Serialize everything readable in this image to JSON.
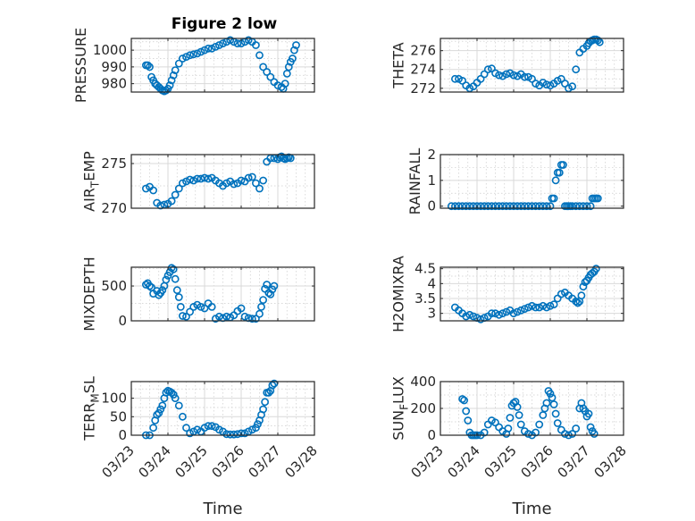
{
  "figure_title": "Figure 2 low",
  "marker_color": "#0072BD",
  "chart_data": [
    {
      "type": "scatter",
      "ylabel": "PRESSURE",
      "xlim": [
        0,
        5
      ],
      "ylim": [
        975,
        1007
      ],
      "yticks": [
        980,
        990,
        1000
      ],
      "xticks": [],
      "x": [
        0.4,
        0.45,
        0.5,
        0.55,
        0.6,
        0.65,
        0.7,
        0.75,
        0.8,
        0.85,
        0.9,
        0.95,
        1.0,
        1.05,
        1.1,
        1.15,
        1.2,
        1.3,
        1.4,
        1.5,
        1.6,
        1.7,
        1.8,
        1.9,
        2.0,
        2.1,
        2.2,
        2.3,
        2.4,
        2.5,
        2.6,
        2.7,
        2.8,
        2.9,
        3.0,
        3.1,
        3.2,
        3.3,
        3.4,
        3.5,
        3.6,
        3.7,
        3.8,
        3.9,
        4.0,
        4.1,
        4.15,
        4.2,
        4.25,
        4.3,
        4.35,
        4.4,
        4.45,
        4.5
      ],
      "y": [
        991,
        991,
        990,
        984,
        982,
        980,
        979,
        978,
        977,
        976,
        975.5,
        976,
        977,
        979,
        982,
        985,
        988,
        992,
        995,
        996,
        997,
        997.5,
        998,
        999,
        1000,
        1001,
        1001,
        1002,
        1003,
        1004,
        1005,
        1006,
        1005,
        1004,
        1004,
        1005,
        1006,
        1005,
        1003,
        997,
        990,
        987,
        984,
        981,
        979,
        978,
        977,
        980,
        986,
        990,
        993,
        995,
        1000,
        1003
      ]
    },
    {
      "type": "scatter",
      "ylabel": "THETA",
      "xlim": [
        0,
        5
      ],
      "ylim": [
        271.6,
        277.3
      ],
      "yticks": [
        272,
        274,
        276
      ],
      "xticks": [],
      "x": [
        0.4,
        0.5,
        0.6,
        0.7,
        0.8,
        0.9,
        1.0,
        1.1,
        1.2,
        1.3,
        1.4,
        1.5,
        1.6,
        1.7,
        1.8,
        1.9,
        2.0,
        2.1,
        2.2,
        2.3,
        2.4,
        2.5,
        2.6,
        2.7,
        2.8,
        2.9,
        3.0,
        3.1,
        3.2,
        3.3,
        3.4,
        3.5,
        3.6,
        3.7,
        3.8,
        3.9,
        4.0,
        4.05,
        4.1,
        4.15,
        4.2,
        4.25,
        4.3,
        4.35
      ],
      "y": [
        273,
        273,
        272.8,
        272.3,
        272,
        272.2,
        272.6,
        273,
        273.5,
        274,
        274.1,
        273.6,
        273.4,
        273.3,
        273.5,
        273.6,
        273.4,
        273.3,
        273.5,
        273.2,
        273.2,
        273,
        272.5,
        272.3,
        272.6,
        272.4,
        272.3,
        272.5,
        272.8,
        273,
        272.5,
        272,
        272.2,
        274,
        275.8,
        276.2,
        276.5,
        276.8,
        277,
        277.1,
        277.2,
        277.2,
        277.1,
        276.9
      ]
    },
    {
      "type": "scatter",
      "ylabel": "AIR_TEMP",
      "xlim": [
        0,
        5
      ],
      "ylim": [
        270,
        276
      ],
      "yticks": [
        270,
        275
      ],
      "xticks": [],
      "x": [
        0.4,
        0.5,
        0.6,
        0.7,
        0.8,
        0.9,
        1.0,
        1.1,
        1.2,
        1.3,
        1.4,
        1.5,
        1.6,
        1.7,
        1.8,
        1.9,
        2.0,
        2.1,
        2.2,
        2.3,
        2.4,
        2.5,
        2.6,
        2.7,
        2.8,
        2.9,
        3.0,
        3.1,
        3.2,
        3.3,
        3.4,
        3.5,
        3.6,
        3.7,
        3.8,
        3.9,
        4.0,
        4.05,
        4.1,
        4.15,
        4.2,
        4.25,
        4.3,
        4.35
      ],
      "y": [
        272.2,
        272.4,
        272,
        270.6,
        270.3,
        270.4,
        270.5,
        270.8,
        271.5,
        272.2,
        272.8,
        273,
        273.2,
        273.1,
        273.3,
        273.3,
        273.4,
        273.3,
        273.4,
        273.1,
        272.8,
        272.5,
        272.8,
        273,
        272.7,
        272.8,
        273.1,
        273,
        273.4,
        273.5,
        272.8,
        272.2,
        273.1,
        275.2,
        275.6,
        275.6,
        275.5,
        275.7,
        275.8,
        275.6,
        275.5,
        275.6,
        275.7,
        275.6
      ]
    },
    {
      "type": "scatter",
      "ylabel": "RAINFALL",
      "xlim": [
        0,
        5
      ],
      "ylim": [
        -0.08,
        2
      ],
      "yticks": [
        0,
        1,
        2
      ],
      "xticks": [],
      "x": [
        0.3,
        0.4,
        0.5,
        0.6,
        0.7,
        0.8,
        0.9,
        1.0,
        1.1,
        1.2,
        1.3,
        1.4,
        1.5,
        1.6,
        1.7,
        1.8,
        1.9,
        2.0,
        2.1,
        2.2,
        2.3,
        2.4,
        2.5,
        2.6,
        2.7,
        2.8,
        2.9,
        3.0,
        3.05,
        3.1,
        3.15,
        3.2,
        3.25,
        3.3,
        3.35,
        3.4,
        3.45,
        3.5,
        3.55,
        3.6,
        3.7,
        3.8,
        3.9,
        4.0,
        4.1,
        4.15,
        4.2,
        4.25,
        4.3
      ],
      "y": [
        0,
        0,
        0,
        0,
        0,
        0,
        0,
        0,
        0,
        0,
        0,
        0,
        0,
        0,
        0,
        0,
        0,
        0,
        0,
        0,
        0,
        0,
        0,
        0,
        0,
        0,
        0,
        0,
        0.3,
        0.3,
        1.0,
        1.3,
        1.3,
        1.6,
        1.6,
        0,
        0,
        0,
        0,
        0,
        0,
        0,
        0,
        0,
        0,
        0.3,
        0.3,
        0.3,
        0.3
      ]
    },
    {
      "type": "scatter",
      "ylabel": "MIXDEPTH",
      "xlim": [
        0,
        5
      ],
      "ylim": [
        0,
        770
      ],
      "yticks": [
        0,
        500
      ],
      "xticks": [],
      "x": [
        0.4,
        0.45,
        0.5,
        0.55,
        0.6,
        0.7,
        0.75,
        0.8,
        0.85,
        0.9,
        0.95,
        1.0,
        1.05,
        1.1,
        1.15,
        1.2,
        1.25,
        1.3,
        1.35,
        1.4,
        1.5,
        1.6,
        1.7,
        1.8,
        1.9,
        2.0,
        2.1,
        2.2,
        2.3,
        2.4,
        2.5,
        2.6,
        2.7,
        2.8,
        2.9,
        3.0,
        3.1,
        3.2,
        3.3,
        3.4,
        3.5,
        3.55,
        3.6,
        3.65,
        3.7,
        3.75,
        3.8,
        3.85,
        3.9
      ],
      "y": [
        520,
        540,
        500,
        480,
        390,
        430,
        370,
        400,
        440,
        500,
        590,
        650,
        700,
        760,
        740,
        600,
        440,
        340,
        200,
        70,
        60,
        130,
        200,
        230,
        200,
        180,
        250,
        200,
        30,
        60,
        40,
        60,
        50,
        80,
        140,
        180,
        60,
        40,
        30,
        30,
        100,
        200,
        300,
        460,
        520,
        400,
        380,
        450,
        500
      ]
    },
    {
      "type": "scatter",
      "ylabel": "H2OMIXRA",
      "xlim": [
        0,
        5
      ],
      "ylim": [
        2.75,
        4.55
      ],
      "yticks": [
        3,
        3.5,
        4,
        4.5
      ],
      "xticks": [],
      "x": [
        0.4,
        0.5,
        0.6,
        0.7,
        0.8,
        0.9,
        1.0,
        1.1,
        1.2,
        1.3,
        1.4,
        1.5,
        1.6,
        1.7,
        1.8,
        1.9,
        2.0,
        2.1,
        2.2,
        2.3,
        2.4,
        2.5,
        2.6,
        2.7,
        2.8,
        2.9,
        3.0,
        3.1,
        3.2,
        3.3,
        3.4,
        3.5,
        3.6,
        3.7,
        3.75,
        3.8,
        3.85,
        3.9,
        3.95,
        4.0,
        4.05,
        4.1,
        4.15,
        4.2,
        4.25
      ],
      "y": [
        3.2,
        3.1,
        3.0,
        2.9,
        2.95,
        2.9,
        2.85,
        2.8,
        2.85,
        2.9,
        3.0,
        3.0,
        2.95,
        3.0,
        3.05,
        3.1,
        3.0,
        3.05,
        3.1,
        3.15,
        3.2,
        3.25,
        3.2,
        3.2,
        3.25,
        3.2,
        3.25,
        3.3,
        3.5,
        3.65,
        3.7,
        3.6,
        3.5,
        3.4,
        3.35,
        3.4,
        3.6,
        3.9,
        4.05,
        4.1,
        4.2,
        4.3,
        4.35,
        4.4,
        4.5
      ]
    },
    {
      "type": "scatter",
      "ylabel": "TERR_MSL",
      "xlim": [
        0,
        5
      ],
      "ylim": [
        0,
        145
      ],
      "yticks": [
        0,
        50,
        100
      ],
      "xticks": [],
      "x": [
        0.4,
        0.5,
        0.6,
        0.65,
        0.7,
        0.75,
        0.8,
        0.85,
        0.9,
        0.95,
        1.0,
        1.05,
        1.1,
        1.15,
        1.2,
        1.3,
        1.4,
        1.5,
        1.6,
        1.7,
        1.8,
        1.9,
        2.0,
        2.1,
        2.2,
        2.3,
        2.4,
        2.5,
        2.6,
        2.7,
        2.8,
        2.9,
        3.0,
        3.1,
        3.2,
        3.3,
        3.4,
        3.45,
        3.5,
        3.55,
        3.6,
        3.65,
        3.7,
        3.75,
        3.8,
        3.85,
        3.9
      ],
      "y": [
        0,
        0,
        20,
        40,
        55,
        60,
        70,
        80,
        100,
        115,
        120,
        118,
        115,
        110,
        100,
        80,
        50,
        20,
        5,
        10,
        15,
        10,
        20,
        25,
        25,
        22,
        15,
        10,
        3,
        2,
        2,
        3,
        5,
        5,
        10,
        15,
        20,
        30,
        40,
        55,
        70,
        90,
        115,
        115,
        120,
        135,
        140
      ]
    },
    {
      "type": "scatter",
      "ylabel": "SUN_FLUX",
      "xlim": [
        0,
        5
      ],
      "ylim": [
        0,
        400
      ],
      "yticks": [
        0,
        200,
        400
      ],
      "xticks": [],
      "x": [
        0.6,
        0.65,
        0.7,
        0.75,
        0.8,
        0.85,
        0.9,
        0.95,
        1.0,
        1.1,
        1.2,
        1.3,
        1.4,
        1.5,
        1.6,
        1.7,
        1.8,
        1.85,
        1.9,
        1.95,
        2.0,
        2.05,
        2.1,
        2.15,
        2.2,
        2.3,
        2.4,
        2.5,
        2.6,
        2.7,
        2.8,
        2.85,
        2.9,
        2.95,
        3.0,
        3.05,
        3.1,
        3.15,
        3.2,
        3.3,
        3.4,
        3.5,
        3.6,
        3.7,
        3.8,
        3.85,
        3.9,
        3.95,
        4.0,
        4.05,
        4.1,
        4.15,
        4.2
      ],
      "y": [
        270,
        260,
        180,
        110,
        20,
        0,
        0,
        0,
        0,
        0,
        20,
        80,
        110,
        95,
        60,
        30,
        10,
        50,
        130,
        220,
        240,
        250,
        210,
        150,
        80,
        30,
        10,
        0,
        20,
        80,
        150,
        200,
        240,
        330,
        310,
        280,
        230,
        160,
        90,
        40,
        10,
        0,
        10,
        50,
        200,
        240,
        200,
        180,
        140,
        160,
        60,
        30,
        10
      ]
    }
  ],
  "x_tick_labels": [
    "03/23",
    "03/24",
    "03/25",
    "03/26",
    "03/27",
    "03/28"
  ],
  "x_axis_label": "Time"
}
